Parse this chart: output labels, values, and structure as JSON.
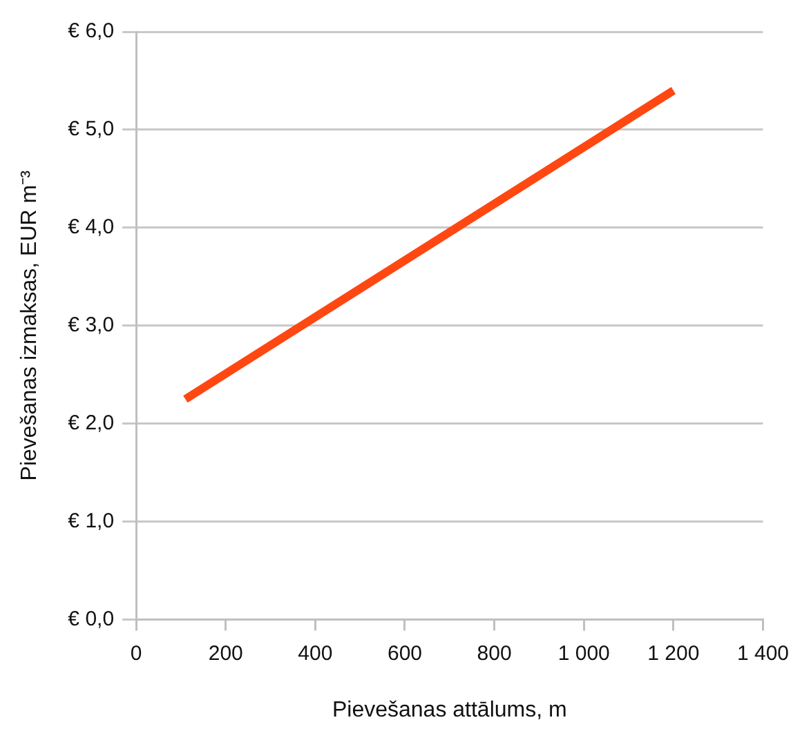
{
  "chart_data": {
    "type": "line",
    "xlabel": "Pievešanas attālums, m",
    "ylabel": "Pievešanas izmaksas, EUR m⁻³",
    "series": [
      {
        "color": "#ff4712",
        "x": [
          110,
          1200
        ],
        "values": [
          2.25,
          5.4
        ]
      }
    ],
    "xlim": [
      0,
      1400
    ],
    "xticks": [
      0,
      200,
      400,
      600,
      800,
      {
        "value": 1000,
        "label": "1 000"
      },
      {
        "value": 1200,
        "label": "1 200"
      },
      {
        "value": 1400,
        "label": "1 400"
      }
    ],
    "ylim": [
      0,
      6
    ],
    "yticks": [
      {
        "value": 0,
        "label": "€ 0,0"
      },
      {
        "value": 1,
        "label": "€ 1,0"
      },
      {
        "value": 2,
        "label": "€ 2,0"
      },
      {
        "value": 3,
        "label": "€ 3,0"
      },
      {
        "value": 4,
        "label": "€ 4,0"
      },
      {
        "value": 5,
        "label": "€ 5,0"
      },
      {
        "value": 6,
        "label": "€ 6,0"
      }
    ],
    "grid": "y",
    "legend": false,
    "marker": "none",
    "line_style": "solid"
  }
}
